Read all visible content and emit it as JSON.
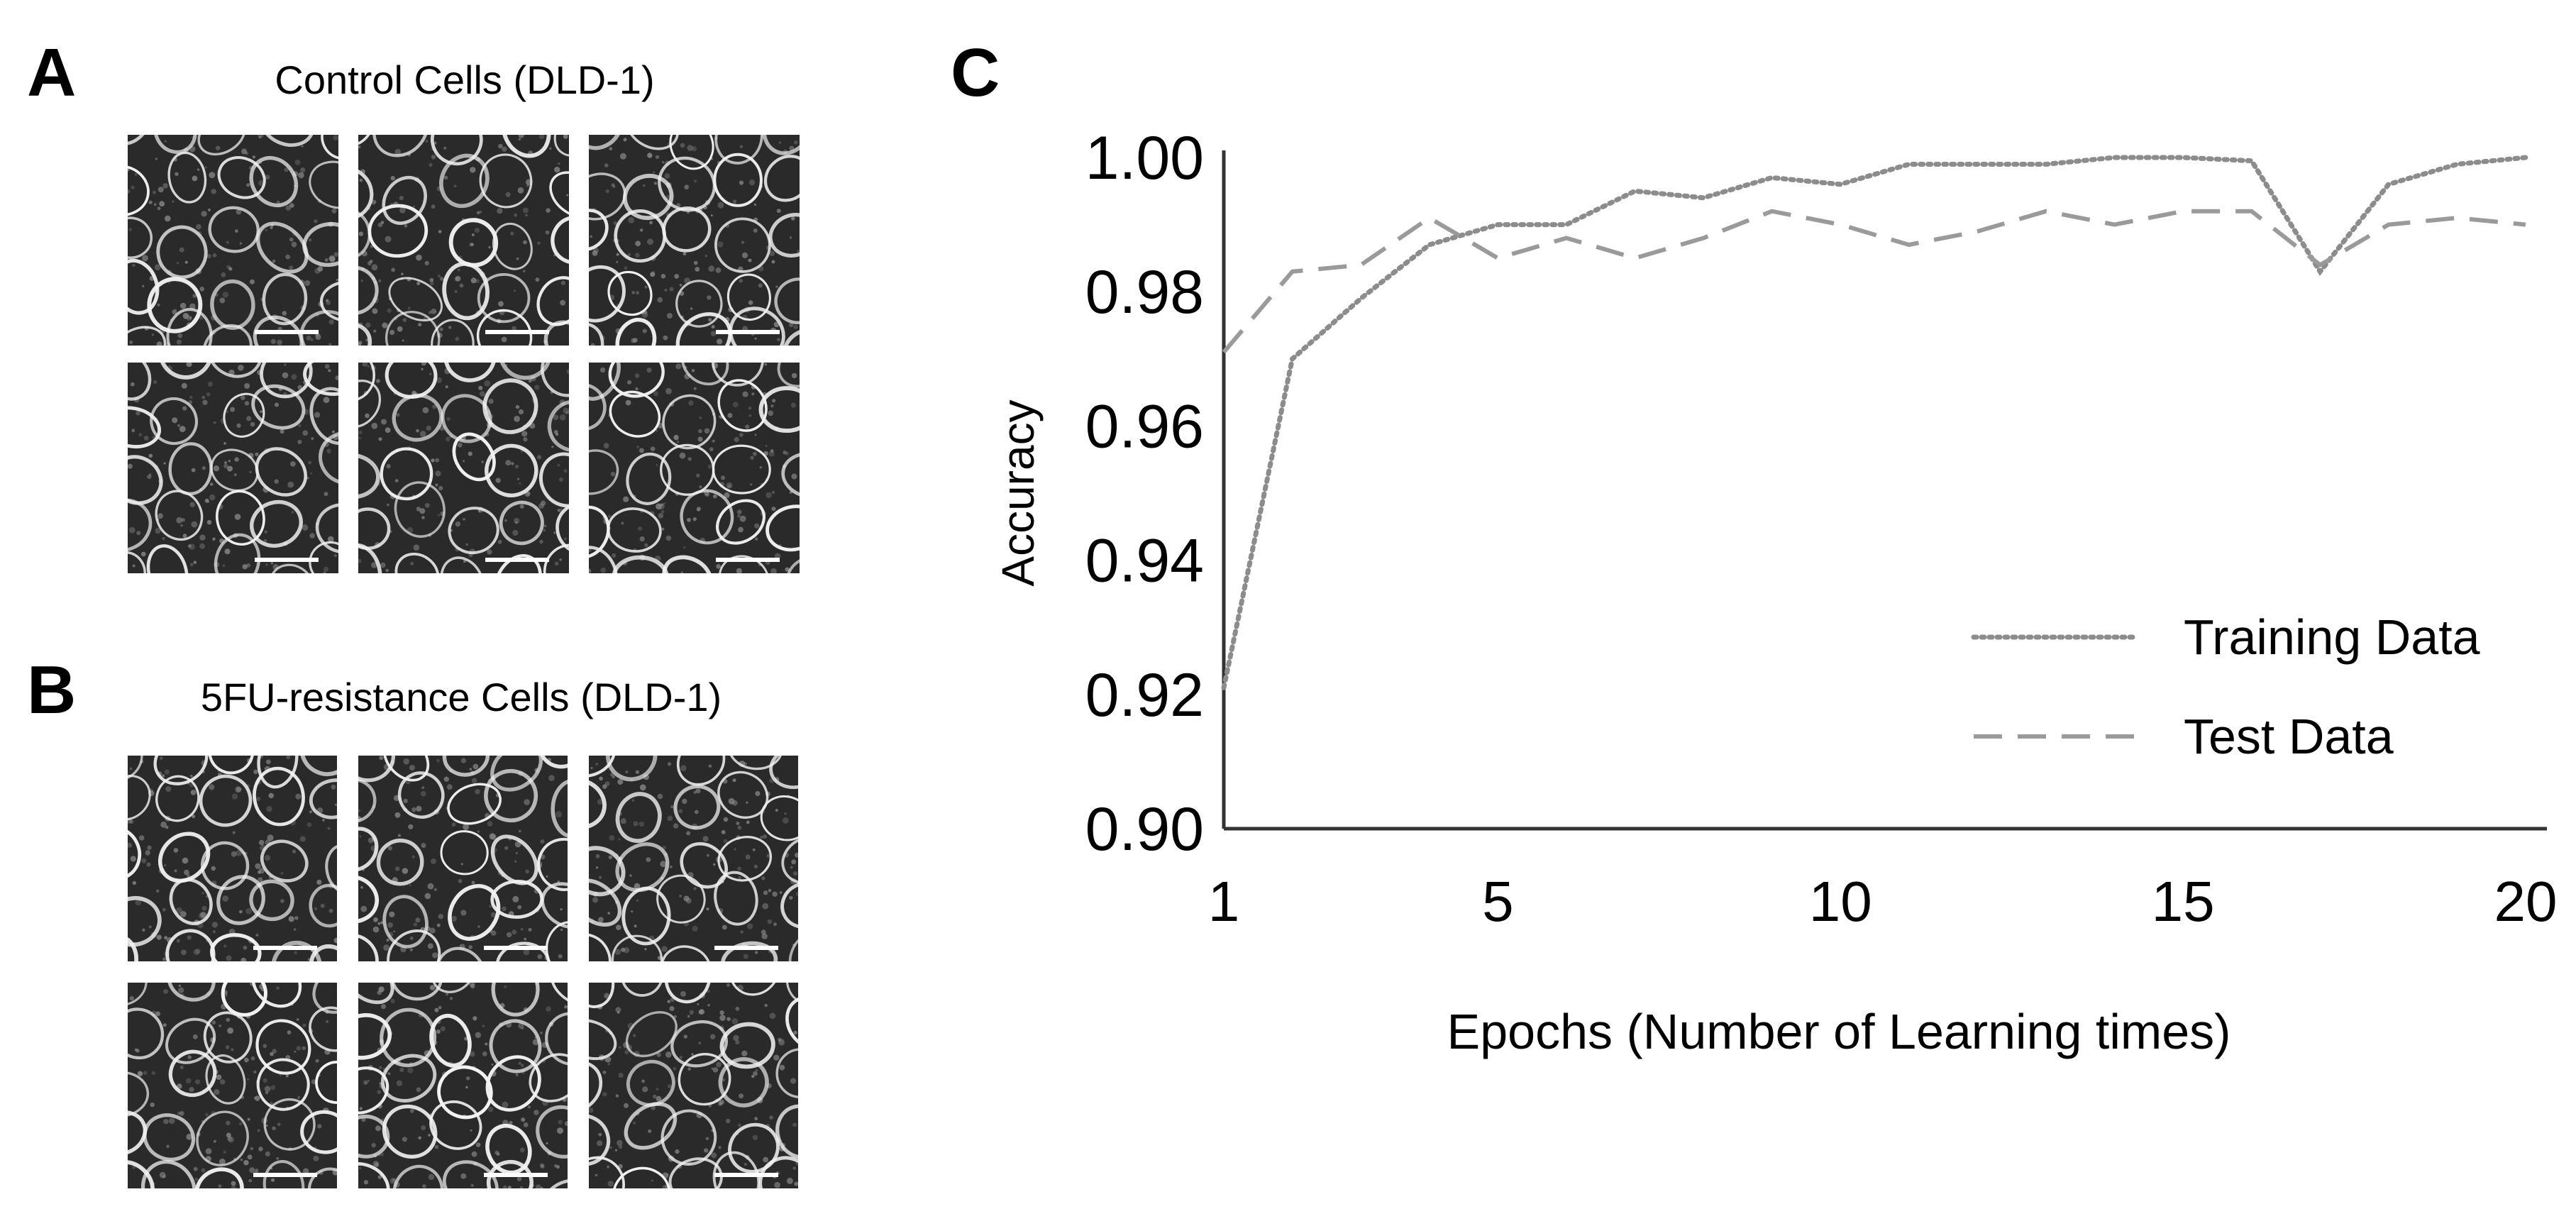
{
  "panels": {
    "a": {
      "letter": "A",
      "title": "Control Cells (DLD-1)"
    },
    "b": {
      "letter": "B",
      "title": "5FU-resistance Cells (DLD-1)"
    },
    "c": {
      "letter": "C"
    }
  },
  "micrograph_tiles": {
    "per_panel": 6,
    "rows": 2,
    "cols": 3,
    "colors": {
      "background": "#2a2a2a",
      "cell_wall": "#f2f2f2",
      "speckle": "#8a8a8a"
    }
  },
  "chart_data": {
    "type": "line",
    "title": "",
    "xlabel": "Epochs (Number of Learning times)",
    "ylabel": "Accuracy",
    "xlim": [
      1,
      20
    ],
    "ylim": [
      0.9,
      1.0
    ],
    "x_ticks": [
      1,
      5,
      10,
      15,
      20
    ],
    "y_ticks": [
      "0.90",
      "0.92",
      "0.94",
      "0.96",
      "0.98",
      "1.00"
    ],
    "grid": false,
    "legend_position": "lower-right",
    "x": [
      1,
      2,
      3,
      4,
      5,
      6,
      7,
      8,
      9,
      10,
      11,
      12,
      13,
      14,
      15,
      16,
      17,
      18,
      19,
      20
    ],
    "series": [
      {
        "name": "Training Data",
        "style": "dotted",
        "color": "#8c8c8c",
        "values": [
          0.921,
          0.97,
          0.979,
          0.987,
          0.99,
          0.99,
          0.995,
          0.994,
          0.997,
          0.996,
          0.999,
          0.999,
          0.999,
          1.0,
          1.0,
          0.9995,
          0.983,
          0.996,
          0.999,
          1.0
        ]
      },
      {
        "name": "Test Data",
        "style": "dashed",
        "color": "#9a9a9a",
        "values": [
          0.971,
          0.983,
          0.984,
          0.991,
          0.985,
          0.988,
          0.985,
          0.988,
          0.992,
          0.99,
          0.987,
          0.989,
          0.992,
          0.99,
          0.992,
          0.992,
          0.984,
          0.99,
          0.991,
          0.99
        ]
      }
    ]
  }
}
